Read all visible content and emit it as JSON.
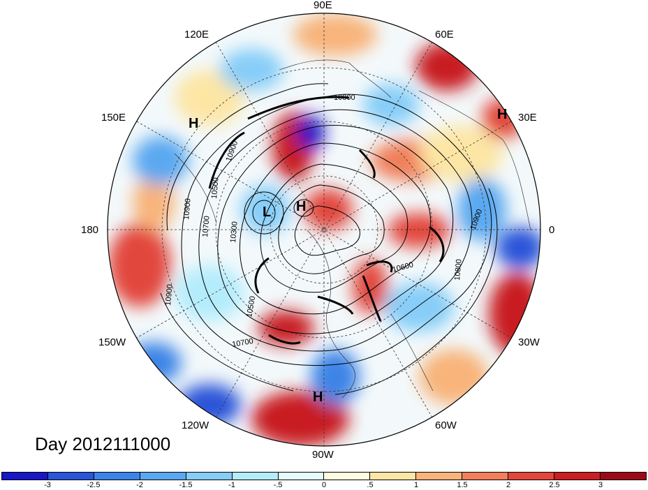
{
  "title": "Day 2012111000",
  "longitude_labels": [
    "90E",
    "60E",
    "30E",
    "0",
    "30W",
    "60W",
    "90W",
    "120W",
    "150W",
    "180",
    "150E",
    "120E"
  ],
  "pressure_centers": [
    "H",
    "H",
    "H",
    "L",
    "H",
    "H"
  ],
  "contour_labels": [
    "10800",
    "10900",
    "10500",
    "10900",
    "10700",
    "10300",
    "10900",
    "10600",
    "10800",
    "10900",
    "10500",
    "10700"
  ],
  "colorbar": {
    "ticks": [
      "-3",
      "-2.5",
      "-2",
      "-1.5",
      "-1",
      "-.5",
      "0",
      ".5",
      "1",
      "1.5",
      "2",
      "2.5",
      "3"
    ],
    "colors": [
      "#1a18c4",
      "#2c55d8",
      "#3d84e6",
      "#5aa8f0",
      "#86cdf8",
      "#b4ecfc",
      "#e6fbff",
      "#fffbe0",
      "#fde6a4",
      "#f8b47a",
      "#f07f5a",
      "#e2473c",
      "#c81e24",
      "#9b0a18"
    ]
  }
}
